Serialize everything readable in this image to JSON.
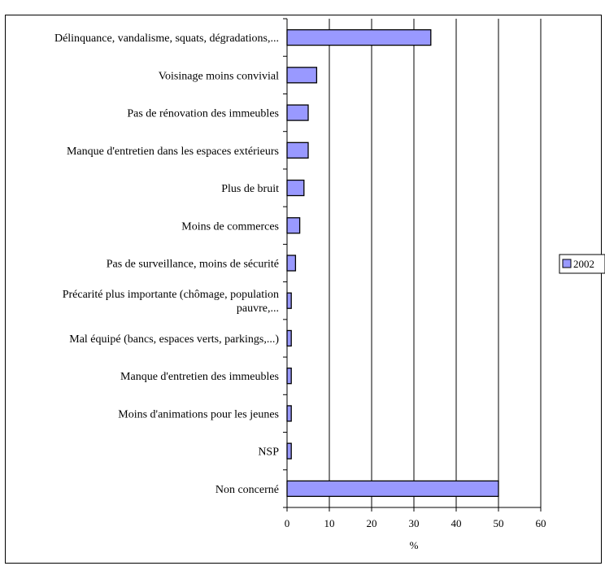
{
  "chart_data": {
    "type": "bar",
    "orientation": "horizontal",
    "categories": [
      "Délinquance, vandalisme, squats, dégradations,...",
      "Voisinage moins convivial",
      "Pas de rénovation des immeubles",
      "Manque d'entretien dans les espaces extérieurs",
      "Plus de bruit",
      "Moins de commerces",
      "Pas de surveillance, moins de sécurité",
      [
        "Précarité plus importante (chômage, population",
        "pauvre,..."
      ],
      "Mal équipé (bancs, espaces verts, parkings,...)",
      "Manque d'entretien des immeubles",
      "Moins d'animations pour les jeunes",
      "NSP",
      "Non concerné"
    ],
    "series": [
      {
        "name": "2002",
        "values": [
          34,
          7,
          5,
          5,
          4,
          3,
          2,
          1,
          1,
          1,
          1,
          1,
          50
        ],
        "color": "#9999ff"
      }
    ],
    "xlabel": "%",
    "xlim": [
      0,
      60
    ],
    "xticks": [
      0,
      10,
      20,
      30,
      40,
      50,
      60
    ],
    "grid": true,
    "legend": "right"
  }
}
